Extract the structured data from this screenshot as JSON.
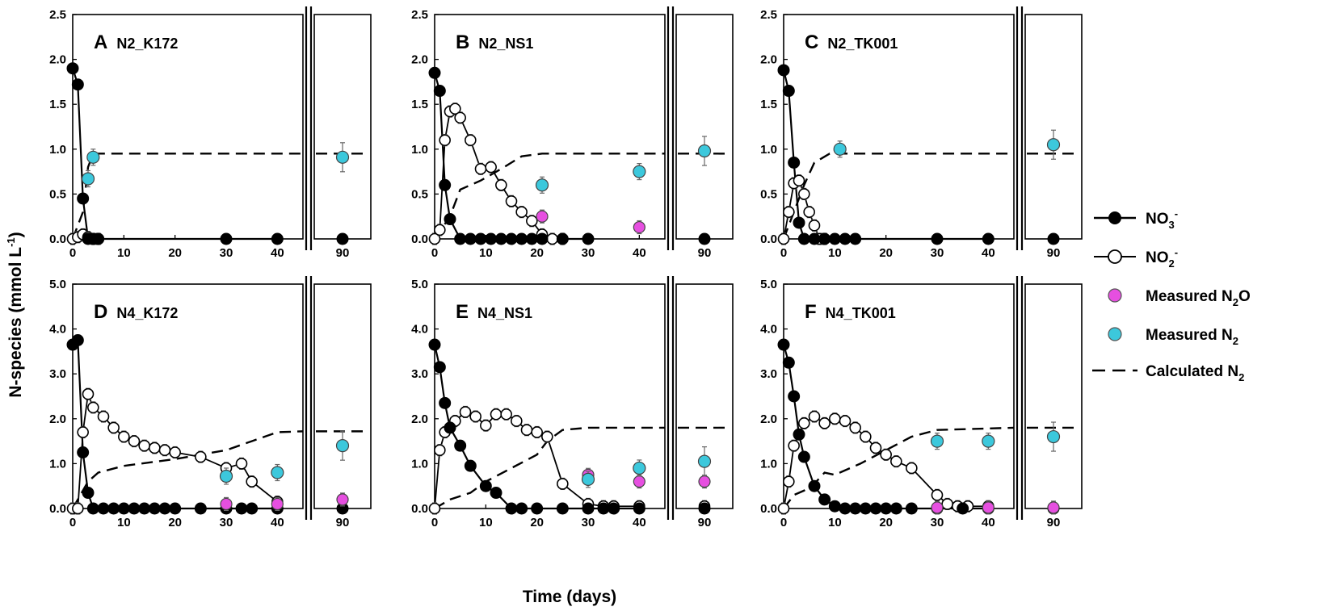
{
  "chart_data": {
    "type": "line",
    "y_axis_title": "N-species (mmol L",
    "y_axis_title_sup": "-1",
    "y_axis_title_end": ")",
    "x_axis_title": "Time (days)",
    "x_ticks_main": [
      0,
      10,
      20,
      30,
      40
    ],
    "x_tick_break": 90,
    "colors": {
      "no3": "#000000",
      "no2_fill": "#ffffff",
      "n2o": "#e64fe0",
      "n2": "#3cc8dc",
      "calc": "#000000",
      "err": "#666666"
    },
    "legend": [
      {
        "key": "no3",
        "label": "NO",
        "sub": "3",
        "sup": "-"
      },
      {
        "key": "no2",
        "label": "NO",
        "sub": "2",
        "sup": "-"
      },
      {
        "key": "n2o",
        "label": "Measured N",
        "sub": "2",
        "tail": "O"
      },
      {
        "key": "n2",
        "label": "Measured N",
        "sub": "2"
      },
      {
        "key": "calc",
        "label": "Calculated N",
        "sub": "2"
      }
    ],
    "panels": [
      {
        "id": "A",
        "name": "N2_K172",
        "ylim": [
          0,
          2.5
        ],
        "yticks": [
          "0.0",
          "0.5",
          "1.0",
          "1.5",
          "2.0",
          "2.5"
        ],
        "no3": [
          [
            0,
            1.9
          ],
          [
            1,
            1.72
          ],
          [
            2,
            0.45
          ],
          [
            3,
            0.0
          ],
          [
            4,
            0.0
          ],
          [
            5,
            0.0
          ],
          [
            30,
            0.0
          ],
          [
            40,
            0.0
          ],
          [
            90,
            0.0
          ]
        ],
        "no2": [
          [
            0,
            0.0
          ],
          [
            1,
            0.02
          ],
          [
            2,
            0.05
          ],
          [
            3,
            0.02
          ],
          [
            4,
            0.0
          ],
          [
            5,
            0.0
          ]
        ],
        "n2o": [],
        "n2": [
          [
            3,
            0.67
          ],
          [
            4,
            0.91
          ],
          [
            90,
            0.91
          ]
        ],
        "calc": [
          [
            0,
            0.0
          ],
          [
            2,
            0.3
          ],
          [
            3,
            0.8
          ],
          [
            4,
            0.95
          ],
          [
            45,
            0.95
          ],
          [
            90,
            0.95
          ]
        ]
      },
      {
        "id": "B",
        "name": "N2_NS1",
        "ylim": [
          0,
          2.5
        ],
        "yticks": [
          "0.0",
          "0.5",
          "1.0",
          "1.5",
          "2.0",
          "2.5"
        ],
        "no3": [
          [
            0,
            1.85
          ],
          [
            1,
            1.65
          ],
          [
            2,
            0.6
          ],
          [
            3,
            0.22
          ],
          [
            5,
            0.0
          ],
          [
            7,
            0.0
          ],
          [
            9,
            0.0
          ],
          [
            11,
            0.0
          ],
          [
            13,
            0.0
          ],
          [
            15,
            0.0
          ],
          [
            17,
            0.0
          ],
          [
            19,
            0.0
          ],
          [
            21,
            0.0
          ],
          [
            25,
            0.0
          ],
          [
            30,
            0.0
          ],
          [
            90,
            0.0
          ]
        ],
        "no2": [
          [
            0,
            0.0
          ],
          [
            1,
            0.1
          ],
          [
            2,
            1.1
          ],
          [
            3,
            1.42
          ],
          [
            4,
            1.45
          ],
          [
            5,
            1.35
          ],
          [
            7,
            1.1
          ],
          [
            9,
            0.78
          ],
          [
            11,
            0.8
          ],
          [
            13,
            0.6
          ],
          [
            15,
            0.42
          ],
          [
            17,
            0.3
          ],
          [
            19,
            0.2
          ],
          [
            21,
            0.05
          ],
          [
            23,
            0.0
          ],
          [
            25,
            0.0
          ]
        ],
        "n2o": [
          [
            21,
            0.25
          ],
          [
            40,
            0.13
          ]
        ],
        "n2": [
          [
            21,
            0.6
          ],
          [
            40,
            0.75
          ],
          [
            90,
            0.98
          ]
        ],
        "calc": [
          [
            0,
            0.0
          ],
          [
            3,
            0.25
          ],
          [
            5,
            0.55
          ],
          [
            9,
            0.65
          ],
          [
            13,
            0.78
          ],
          [
            17,
            0.92
          ],
          [
            21,
            0.95
          ],
          [
            45,
            0.95
          ],
          [
            90,
            0.95
          ]
        ]
      },
      {
        "id": "C",
        "name": "N2_TK001",
        "ylim": [
          0,
          2.5
        ],
        "yticks": [
          "0.0",
          "0.5",
          "1.0",
          "1.5",
          "2.0",
          "2.5"
        ],
        "no3": [
          [
            0,
            1.88
          ],
          [
            1,
            1.65
          ],
          [
            2,
            0.85
          ],
          [
            3,
            0.18
          ],
          [
            4,
            0.0
          ],
          [
            6,
            0.0
          ],
          [
            8,
            0.0
          ],
          [
            10,
            0.0
          ],
          [
            12,
            0.0
          ],
          [
            14,
            0.0
          ],
          [
            30,
            0.0
          ],
          [
            40,
            0.0
          ],
          [
            90,
            0.0
          ]
        ],
        "no2": [
          [
            0,
            0.0
          ],
          [
            1,
            0.3
          ],
          [
            2,
            0.62
          ],
          [
            3,
            0.65
          ],
          [
            4,
            0.5
          ],
          [
            5,
            0.3
          ],
          [
            6,
            0.15
          ],
          [
            7,
            0.0
          ],
          [
            8,
            0.0
          ]
        ],
        "n2o": [],
        "n2": [
          [
            11,
            1.0
          ],
          [
            90,
            1.05
          ]
        ],
        "calc": [
          [
            0,
            0.0
          ],
          [
            2,
            0.3
          ],
          [
            4,
            0.6
          ],
          [
            6,
            0.85
          ],
          [
            9,
            0.95
          ],
          [
            45,
            0.95
          ],
          [
            90,
            0.95
          ]
        ]
      },
      {
        "id": "D",
        "name": "N4_K172",
        "ylim": [
          0,
          5.0
        ],
        "yticks": [
          "0.0",
          "1.0",
          "2.0",
          "3.0",
          "4.0",
          "5.0"
        ],
        "no3": [
          [
            0,
            3.65
          ],
          [
            1,
            3.75
          ],
          [
            2,
            1.25
          ],
          [
            3,
            0.35
          ],
          [
            4,
            0.0
          ],
          [
            6,
            0.0
          ],
          [
            8,
            0.0
          ],
          [
            10,
            0.0
          ],
          [
            12,
            0.0
          ],
          [
            14,
            0.0
          ],
          [
            16,
            0.0
          ],
          [
            18,
            0.0
          ],
          [
            20,
            0.0
          ],
          [
            25,
            0.0
          ],
          [
            30,
            0.0
          ],
          [
            33,
            0.0
          ],
          [
            35,
            0.0
          ],
          [
            40,
            0.0
          ],
          [
            90,
            0.0
          ]
        ],
        "no2": [
          [
            0,
            0.0
          ],
          [
            1,
            0.0
          ],
          [
            2,
            1.7
          ],
          [
            3,
            2.55
          ],
          [
            4,
            2.25
          ],
          [
            6,
            2.05
          ],
          [
            8,
            1.8
          ],
          [
            10,
            1.6
          ],
          [
            12,
            1.5
          ],
          [
            14,
            1.4
          ],
          [
            16,
            1.35
          ],
          [
            18,
            1.3
          ],
          [
            20,
            1.25
          ],
          [
            25,
            1.15
          ],
          [
            30,
            0.9
          ],
          [
            33,
            1.0
          ],
          [
            35,
            0.6
          ],
          [
            40,
            0.15
          ]
        ],
        "n2o": [
          [
            30,
            0.1
          ],
          [
            40,
            0.1
          ],
          [
            90,
            0.2
          ]
        ],
        "n2": [
          [
            30,
            0.72
          ],
          [
            40,
            0.8
          ],
          [
            90,
            1.4
          ]
        ],
        "calc": [
          [
            0,
            0.0
          ],
          [
            3,
            0.6
          ],
          [
            5,
            0.8
          ],
          [
            10,
            0.95
          ],
          [
            20,
            1.1
          ],
          [
            30,
            1.3
          ],
          [
            35,
            1.5
          ],
          [
            40,
            1.7
          ],
          [
            45,
            1.72
          ],
          [
            90,
            1.72
          ]
        ]
      },
      {
        "id": "E",
        "name": "N4_NS1",
        "ylim": [
          0,
          5.0
        ],
        "yticks": [
          "0.0",
          "1.0",
          "2.0",
          "3.0",
          "4.0",
          "5.0"
        ],
        "no3": [
          [
            0,
            3.65
          ],
          [
            1,
            3.15
          ],
          [
            2,
            2.35
          ],
          [
            3,
            1.8
          ],
          [
            5,
            1.4
          ],
          [
            7,
            0.95
          ],
          [
            10,
            0.5
          ],
          [
            12,
            0.35
          ],
          [
            15,
            0.0
          ],
          [
            17,
            0.0
          ],
          [
            20,
            0.0
          ],
          [
            25,
            0.0
          ],
          [
            30,
            0.0
          ],
          [
            33,
            0.0
          ],
          [
            35,
            0.0
          ],
          [
            40,
            0.0
          ],
          [
            90,
            0.0
          ]
        ],
        "no2": [
          [
            0,
            0.0
          ],
          [
            1,
            1.3
          ],
          [
            2,
            1.7
          ],
          [
            4,
            1.95
          ],
          [
            6,
            2.15
          ],
          [
            8,
            2.05
          ],
          [
            10,
            1.85
          ],
          [
            12,
            2.1
          ],
          [
            14,
            2.1
          ],
          [
            16,
            1.95
          ],
          [
            18,
            1.75
          ],
          [
            20,
            1.7
          ],
          [
            22,
            1.6
          ],
          [
            25,
            0.55
          ],
          [
            30,
            0.1
          ],
          [
            33,
            0.05
          ],
          [
            35,
            0.05
          ],
          [
            40,
            0.05
          ],
          [
            90,
            0.05
          ]
        ],
        "n2o": [
          [
            30,
            0.75
          ],
          [
            40,
            0.6
          ],
          [
            90,
            0.6
          ]
        ],
        "n2": [
          [
            30,
            0.65
          ],
          [
            40,
            0.9
          ],
          [
            90,
            1.05
          ]
        ],
        "calc": [
          [
            0,
            0.0
          ],
          [
            3,
            0.2
          ],
          [
            7,
            0.35
          ],
          [
            10,
            0.6
          ],
          [
            15,
            0.9
          ],
          [
            20,
            1.2
          ],
          [
            22,
            1.5
          ],
          [
            25,
            1.75
          ],
          [
            30,
            1.8
          ],
          [
            45,
            1.8
          ],
          [
            90,
            1.8
          ]
        ]
      },
      {
        "id": "F",
        "name": "N4_TK001",
        "ylim": [
          0,
          5.0
        ],
        "yticks": [
          "0.0",
          "1.0",
          "2.0",
          "3.0",
          "4.0",
          "5.0"
        ],
        "no3": [
          [
            0,
            3.65
          ],
          [
            1,
            3.25
          ],
          [
            2,
            2.5
          ],
          [
            3,
            1.65
          ],
          [
            4,
            1.15
          ],
          [
            6,
            0.5
          ],
          [
            8,
            0.2
          ],
          [
            10,
            0.05
          ],
          [
            12,
            0.0
          ],
          [
            14,
            0.0
          ],
          [
            16,
            0.0
          ],
          [
            18,
            0.0
          ],
          [
            20,
            0.0
          ],
          [
            22,
            0.0
          ],
          [
            25,
            0.0
          ],
          [
            30,
            0.0
          ],
          [
            35,
            0.0
          ],
          [
            40,
            0.0
          ],
          [
            90,
            0.0
          ]
        ],
        "no2": [
          [
            0,
            0.0
          ],
          [
            1,
            0.6
          ],
          [
            2,
            1.4
          ],
          [
            4,
            1.9
          ],
          [
            6,
            2.05
          ],
          [
            8,
            1.9
          ],
          [
            10,
            2.0
          ],
          [
            12,
            1.95
          ],
          [
            14,
            1.8
          ],
          [
            16,
            1.6
          ],
          [
            18,
            1.35
          ],
          [
            20,
            1.2
          ],
          [
            22,
            1.05
          ],
          [
            25,
            0.9
          ],
          [
            30,
            0.3
          ],
          [
            32,
            0.1
          ],
          [
            34,
            0.05
          ],
          [
            36,
            0.05
          ],
          [
            40,
            0.05
          ]
        ],
        "n2o": [
          [
            30,
            0.02
          ],
          [
            40,
            0.02
          ],
          [
            90,
            0.02
          ]
        ],
        "n2": [
          [
            30,
            1.5
          ],
          [
            40,
            1.5
          ],
          [
            90,
            1.6
          ]
        ],
        "calc": [
          [
            0,
            0.0
          ],
          [
            2,
            0.3
          ],
          [
            4,
            0.4
          ],
          [
            6,
            0.55
          ],
          [
            8,
            0.8
          ],
          [
            10,
            0.75
          ],
          [
            15,
            1.0
          ],
          [
            20,
            1.3
          ],
          [
            25,
            1.6
          ],
          [
            30,
            1.75
          ],
          [
            45,
            1.8
          ],
          [
            90,
            1.8
          ]
        ]
      }
    ]
  }
}
